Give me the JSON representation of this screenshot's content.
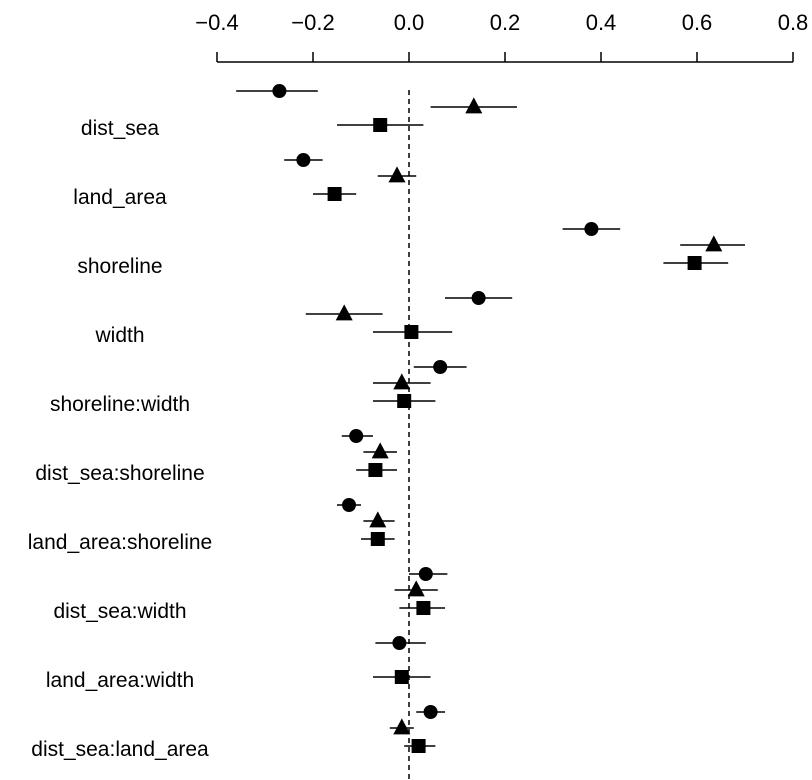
{
  "chart_data": {
    "type": "scatter",
    "title": "",
    "xlabel": "",
    "ylabel": "",
    "xlim": [
      -0.4,
      0.8
    ],
    "xticks": [
      -0.4,
      -0.2,
      0.0,
      0.2,
      0.4,
      0.6,
      0.8
    ],
    "xtick_labels": [
      "−0.4",
      "−0.2",
      "0.0",
      "0.2",
      "0.4",
      "0.6",
      "0.8"
    ],
    "x_axis_position": "top",
    "reference_line": 0,
    "grid": false,
    "legend": "none",
    "categories": [
      "dist_sea",
      "land_area",
      "shoreline",
      "width",
      "shoreline:width",
      "dist_sea:shoreline",
      "land_area:shoreline",
      "dist_sea:width",
      "land_area:width",
      "dist_sea:land_area"
    ],
    "series": [
      {
        "marker": "circle",
        "values": [
          -0.27,
          -0.22,
          0.38,
          0.145,
          0.065,
          -0.11,
          -0.125,
          0.035,
          -0.02,
          0.045
        ],
        "ci_low": [
          -0.36,
          -0.26,
          0.32,
          0.075,
          0.01,
          -0.14,
          -0.15,
          0.0,
          -0.07,
          0.015
        ],
        "ci_high": [
          -0.19,
          -0.18,
          0.44,
          0.215,
          0.12,
          -0.075,
          -0.1,
          0.08,
          0.035,
          0.075
        ]
      },
      {
        "marker": "triangle",
        "values": [
          0.135,
          -0.025,
          0.635,
          -0.135,
          -0.015,
          -0.06,
          -0.065,
          0.015,
          null,
          -0.015
        ],
        "ci_low": [
          0.045,
          -0.065,
          0.565,
          -0.215,
          -0.075,
          -0.095,
          -0.095,
          -0.03,
          null,
          -0.04
        ],
        "ci_high": [
          0.225,
          0.015,
          0.7,
          -0.055,
          0.045,
          -0.025,
          -0.03,
          0.06,
          null,
          0.01
        ]
      },
      {
        "marker": "square",
        "values": [
          -0.06,
          -0.155,
          0.595,
          0.005,
          -0.01,
          -0.07,
          -0.065,
          0.03,
          -0.015,
          0.02
        ],
        "ci_low": [
          -0.15,
          -0.2,
          0.53,
          -0.075,
          -0.075,
          -0.11,
          -0.1,
          -0.02,
          -0.075,
          -0.01
        ],
        "ci_high": [
          0.03,
          -0.11,
          0.665,
          0.09,
          0.055,
          -0.025,
          -0.03,
          0.075,
          0.045,
          0.055
        ]
      }
    ]
  }
}
